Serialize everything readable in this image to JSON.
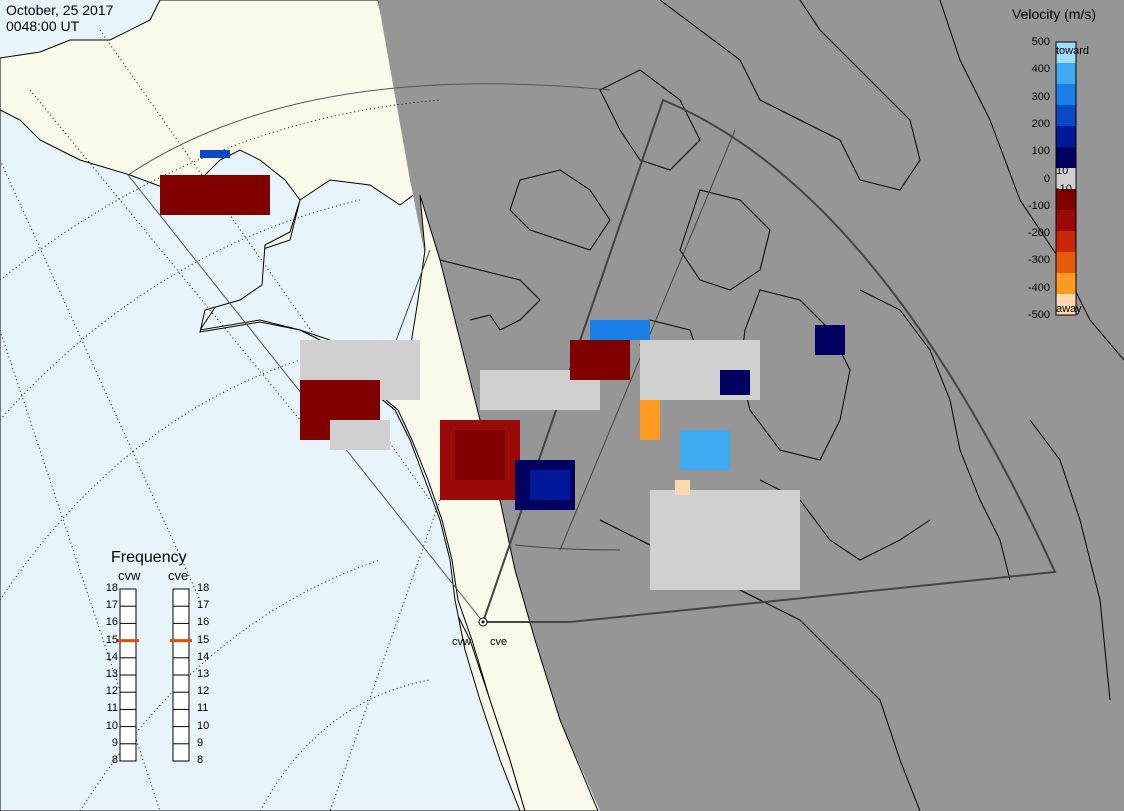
{
  "header": {
    "date": "October, 25 2017",
    "time": "0048:00 UT"
  },
  "colorbar": {
    "title": "Velocity (m/s)",
    "ticks": [
      "500",
      "400",
      "300",
      "200",
      "100",
      "0",
      "-100",
      "-200",
      "-300",
      "-400",
      "-500"
    ],
    "inner_ticks": [
      "10",
      "-10"
    ],
    "toward_label": "toward",
    "away_label": "away",
    "colors": [
      "#ffd8b0",
      "#ff9a20",
      "#e85a0a",
      "#c82808",
      "#9a0a08",
      "#800000",
      "#d0d0d0",
      "#000060",
      "#00189a",
      "#0a48c8",
      "#1a80e8",
      "#40aaf0",
      "#a0dcfc"
    ]
  },
  "frequency": {
    "title": "Frequency",
    "radars": [
      {
        "name": "cvw",
        "value": 15
      },
      {
        "name": "cve",
        "value": 15
      }
    ],
    "ticks": [
      "18",
      "17",
      "16",
      "15",
      "14",
      "13",
      "12",
      "11",
      "10",
      "9",
      "8"
    ]
  },
  "sites": [
    {
      "name": "cvw"
    },
    {
      "name": "cve"
    }
  ],
  "colors": {
    "ocean": "#e8f4fc",
    "land": "#fafaea",
    "night": "#969696",
    "indicator": "#e05010"
  }
}
